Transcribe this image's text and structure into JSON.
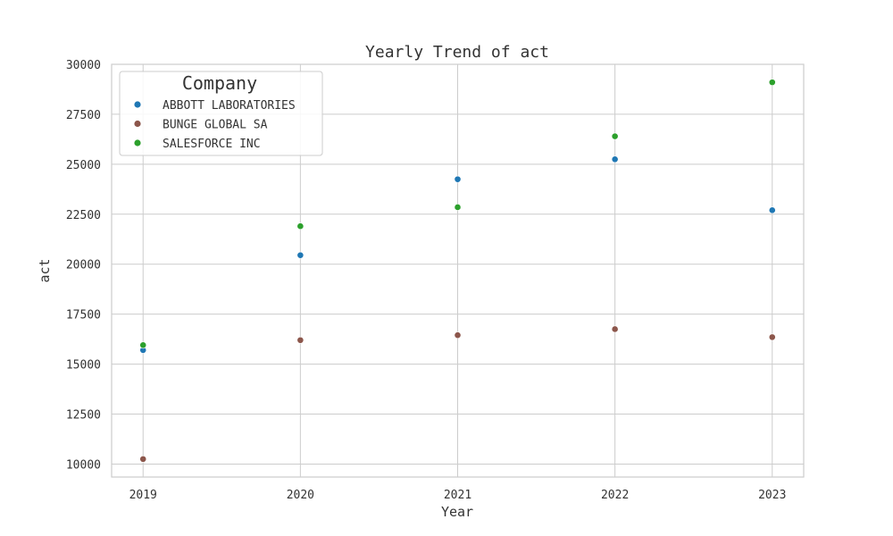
{
  "chart_data": {
    "type": "scatter",
    "title": "Yearly Trend of act",
    "xlabel": "Year",
    "ylabel": "act",
    "x": [
      2019,
      2020,
      2021,
      2022,
      2023
    ],
    "x_tick_labels": [
      "2019",
      "2020",
      "2021",
      "2022",
      "2023"
    ],
    "xlim": [
      2018.8,
      2023.2
    ],
    "ylim": [
      9350,
      30000
    ],
    "y_ticks": [
      10000,
      12500,
      15000,
      17500,
      20000,
      22500,
      25000,
      27500,
      30000
    ],
    "y_tick_labels": [
      "10000",
      "12500",
      "15000",
      "17500",
      "20000",
      "22500",
      "25000",
      "27500",
      "30000"
    ],
    "grid": true,
    "legend": {
      "title": "Company",
      "placement": "top-left"
    },
    "series": [
      {
        "name": "ABBOTT LABORATORIES",
        "color": "#1f77b4",
        "values": [
          15700,
          20450,
          24250,
          25250,
          22700
        ]
      },
      {
        "name": "BUNGE GLOBAL SA",
        "color": "#8c564b",
        "values": [
          10250,
          16200,
          16450,
          16750,
          16350
        ]
      },
      {
        "name": "SALESFORCE INC",
        "color": "#2ca02c",
        "values": [
          15950,
          21900,
          22850,
          26400,
          29100
        ]
      }
    ]
  }
}
